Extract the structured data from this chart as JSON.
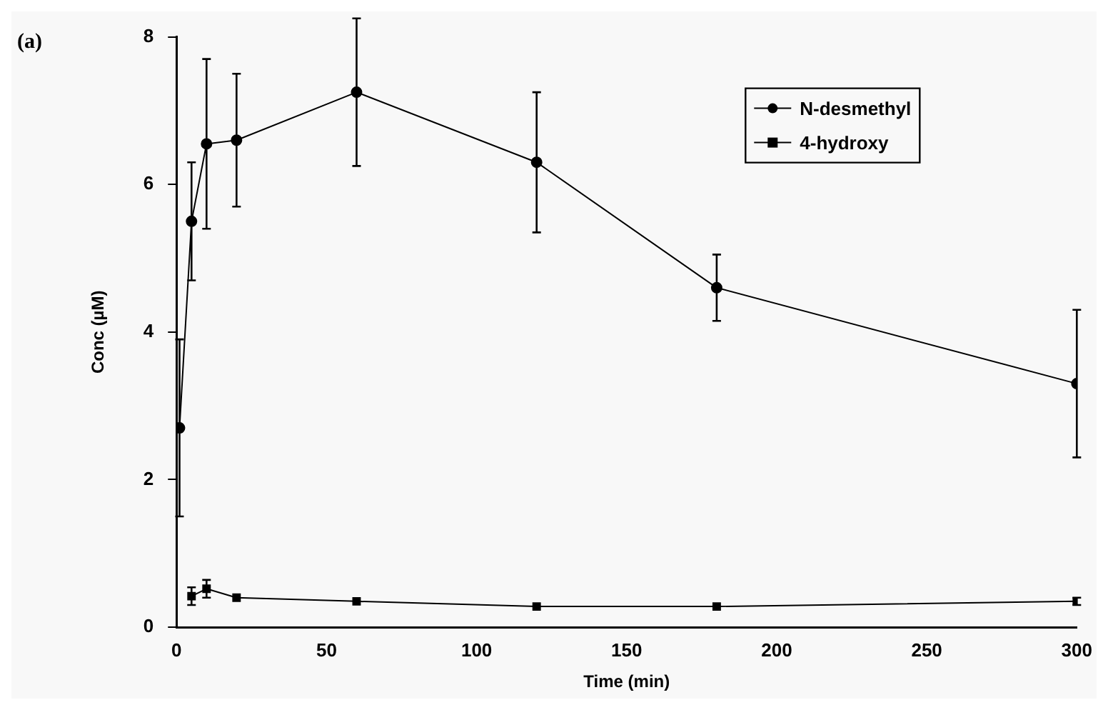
{
  "chart_data": {
    "type": "line",
    "xlabel": "Time (min)",
    "ylabel": "Conc (µM)",
    "annotations": [
      "(a)"
    ],
    "xlim": [
      0,
      300
    ],
    "xticks": [
      0,
      50,
      100,
      150,
      200,
      250,
      300
    ],
    "ylim": [
      0,
      8
    ],
    "yticks": [
      0,
      2,
      4,
      6,
      8
    ],
    "grid": false,
    "legend": "top right",
    "series": [
      {
        "name": "N-desmethyl",
        "color": "#000000",
        "marker": "circle",
        "x": [
          1,
          5,
          10,
          20,
          60,
          120,
          180,
          300
        ],
        "values": [
          2.7,
          5.5,
          6.55,
          6.6,
          7.25,
          6.3,
          4.6,
          3.3
        ],
        "errors": [
          1.2,
          0.8,
          1.15,
          0.9,
          1.0,
          0.95,
          0.45,
          1.0
        ]
      },
      {
        "name": "4-hydroxy",
        "color": "#000000",
        "marker": "square",
        "x": [
          5,
          10,
          20,
          60,
          120,
          180,
          300
        ],
        "values": [
          0.42,
          0.52,
          0.4,
          0.35,
          0.28,
          0.28,
          0.35
        ],
        "errors": [
          0.12,
          0.12,
          null,
          null,
          null,
          null,
          0.05
        ]
      }
    ]
  }
}
